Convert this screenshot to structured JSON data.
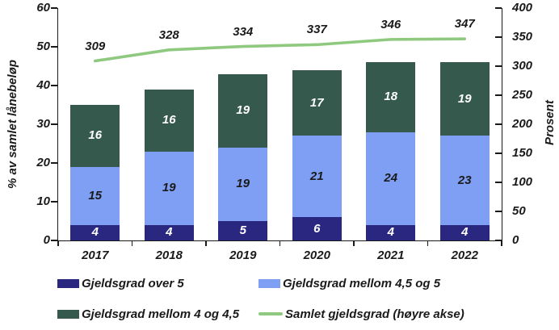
{
  "chart_data": {
    "type": "bar",
    "subtype": "stacked-bars-with-secondary-axis-line",
    "categories": [
      "2017",
      "2018",
      "2019",
      "2020",
      "2021",
      "2022"
    ],
    "series": [
      {
        "name": "Gjeldsgrad over 5",
        "kind": "bar",
        "axis": "left",
        "color": "#2A2780",
        "label_color": "#FFFFFF",
        "values": [
          4,
          4,
          5,
          6,
          4,
          4
        ]
      },
      {
        "name": "Gjeldsgrad mellom 4,5 og 5",
        "kind": "bar",
        "axis": "left",
        "color": "#7E9FF3",
        "label_color": "#1A1A1A",
        "values": [
          15,
          19,
          19,
          21,
          24,
          23
        ]
      },
      {
        "name": "Gjeldsgrad mellom 4 og 4,5",
        "kind": "bar",
        "axis": "left",
        "color": "#36594D",
        "label_color": "#FFFFFF",
        "values": [
          16,
          16,
          19,
          17,
          18,
          19
        ]
      },
      {
        "name": "Samlet gjeldsgrad (høyre akse)",
        "kind": "line",
        "axis": "right",
        "color": "#8FC97F",
        "label_color": "#1A1A1A",
        "values": [
          309,
          328,
          334,
          337,
          346,
          347
        ]
      }
    ],
    "left_axis": {
      "title": "% av samlet lånebeløp",
      "min": 0,
      "max": 60,
      "step": 10,
      "ticks": [
        "0",
        "10",
        "20",
        "30",
        "40",
        "50",
        "60"
      ]
    },
    "right_axis": {
      "title": "Prosent",
      "min": 0,
      "max": 400,
      "step": 50,
      "ticks": [
        "0",
        "50",
        "100",
        "150",
        "200",
        "250",
        "300",
        "350",
        "400"
      ]
    },
    "legend": [
      {
        "label": "Gjeldsgrad over 5",
        "marker": "box",
        "color": "#2A2780"
      },
      {
        "label": "Gjeldsgrad mellom 4,5 og 5",
        "marker": "box",
        "color": "#7E9FF3"
      },
      {
        "label": "Gjeldsgrad mellom 4 og 4,5",
        "marker": "box",
        "color": "#36594D"
      },
      {
        "label": "Samlet gjeldsgrad (høyre akse)",
        "marker": "line",
        "color": "#8FC97F"
      }
    ],
    "grid": false,
    "background": "#FFFFFF",
    "axis_color": "#1A1A1A"
  }
}
